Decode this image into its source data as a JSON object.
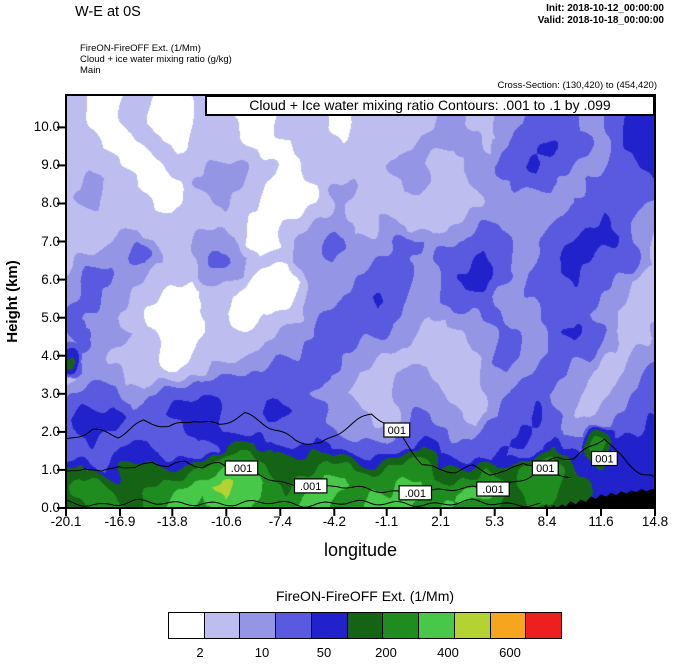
{
  "header": {
    "title": "W-E at 0S",
    "init_label": "Init: 2018-10-12_00:00:00",
    "valid_label": "Valid: 2018-10-18_00:00:00",
    "subtitle_lines": [
      "FireON-FireOFF Ext. (1/Mm)",
      "Cloud + ice water mixing ratio (g/kg)",
      "Main"
    ],
    "cross_section": "Cross-Section: (130,420) to (454,420)"
  },
  "chart_data": {
    "type": "heatmap",
    "title": "Cloud + Ice water mixing ratio Contours: .001 to .1 by .099",
    "xlabel": "longitude",
    "ylabel": "Height (km)",
    "xlim": [
      -20.1,
      14.8
    ],
    "ylim": [
      0,
      10.85
    ],
    "x_ticks": [
      "-20.1",
      "-16.9",
      "-13.8",
      "-10.6",
      "-7.4",
      "-4.2",
      "-1.1",
      "2.1",
      "5.3",
      "8.4",
      "11.6",
      "14.8"
    ],
    "y_ticks": [
      "0.0",
      "1.0",
      "2.0",
      "3.0",
      "4.0",
      "5.0",
      "6.0",
      "7.0",
      "8.0",
      "9.0",
      "10.0"
    ],
    "colorbar": {
      "title": "FireON-FireOFF Ext.  (1/Mm)",
      "colors": [
        "#ffffff",
        "#bdbdf0",
        "#9595e6",
        "#5a5ae0",
        "#2222cd",
        "#156415",
        "#1f8c1f",
        "#48c848",
        "#b4d232",
        "#f5a61e",
        "#ed1f1f"
      ],
      "thresholds": [
        2,
        5,
        10,
        25,
        50,
        100,
        200,
        300,
        400,
        500
      ],
      "tick_labels": [
        "2",
        "10",
        "50",
        "200",
        "400",
        "600"
      ]
    },
    "grid": {
      "x_start": -20.1,
      "x_end": 14.8,
      "y_start": 10.0,
      "y_end": 0.0,
      "values": [
        [
          3,
          3,
          0,
          0,
          3,
          3,
          0,
          0,
          3,
          3,
          3,
          0,
          0,
          3,
          3,
          3,
          0,
          3,
          3,
          3,
          3,
          3,
          7,
          7,
          3,
          3,
          7,
          7,
          15,
          15,
          15,
          7,
          7,
          15,
          35,
          35
        ],
        [
          3,
          3,
          3,
          0,
          0,
          3,
          3,
          0,
          3,
          3,
          3,
          3,
          0,
          0,
          3,
          3,
          3,
          3,
          3,
          3,
          3,
          7,
          7,
          7,
          7,
          3,
          7,
          15,
          15,
          35,
          15,
          15,
          7,
          15,
          35,
          35
        ],
        [
          0,
          3,
          3,
          3,
          0,
          0,
          3,
          3,
          3,
          7,
          7,
          3,
          3,
          0,
          3,
          3,
          3,
          3,
          3,
          7,
          7,
          7,
          3,
          3,
          7,
          7,
          15,
          15,
          35,
          15,
          15,
          7,
          7,
          15,
          15,
          35
        ],
        [
          3,
          3,
          7,
          3,
          3,
          0,
          0,
          3,
          7,
          7,
          7,
          3,
          0,
          0,
          0,
          3,
          7,
          7,
          3,
          3,
          7,
          7,
          3,
          3,
          3,
          7,
          7,
          15,
          15,
          15,
          7,
          7,
          15,
          15,
          15,
          15
        ],
        [
          3,
          7,
          7,
          3,
          3,
          3,
          0,
          3,
          3,
          7,
          3,
          3,
          0,
          0,
          3,
          3,
          7,
          3,
          3,
          3,
          3,
          3,
          3,
          3,
          3,
          3,
          7,
          7,
          7,
          7,
          7,
          15,
          15,
          15,
          15,
          7
        ],
        [
          3,
          3,
          3,
          3,
          3,
          3,
          3,
          3,
          3,
          3,
          3,
          0,
          0,
          3,
          3,
          7,
          7,
          3,
          3,
          7,
          7,
          3,
          3,
          3,
          7,
          7,
          7,
          7,
          7,
          7,
          15,
          15,
          35,
          15,
          7,
          7
        ],
        [
          3,
          3,
          3,
          7,
          7,
          3,
          3,
          3,
          7,
          7,
          3,
          0,
          0,
          3,
          7,
          7,
          15,
          7,
          7,
          7,
          15,
          15,
          7,
          7,
          7,
          15,
          15,
          7,
          7,
          15,
          15,
          35,
          35,
          15,
          7,
          3
        ],
        [
          3,
          7,
          7,
          7,
          15,
          7,
          3,
          3,
          7,
          15,
          7,
          3,
          3,
          3,
          7,
          7,
          7,
          7,
          7,
          15,
          15,
          7,
          7,
          15,
          15,
          35,
          15,
          7,
          7,
          15,
          35,
          35,
          15,
          15,
          7,
          3
        ],
        [
          7,
          15,
          15,
          7,
          7,
          3,
          3,
          3,
          7,
          7,
          7,
          3,
          0,
          0,
          3,
          7,
          7,
          7,
          15,
          15,
          15,
          7,
          7,
          15,
          35,
          35,
          15,
          7,
          15,
          15,
          35,
          15,
          15,
          7,
          3,
          3
        ],
        [
          7,
          15,
          7,
          7,
          3,
          3,
          0,
          0,
          3,
          3,
          3,
          0,
          0,
          0,
          3,
          7,
          7,
          15,
          15,
          35,
          15,
          7,
          7,
          15,
          15,
          15,
          7,
          7,
          15,
          15,
          15,
          15,
          7,
          7,
          3,
          3
        ],
        [
          15,
          7,
          7,
          3,
          3,
          0,
          0,
          0,
          3,
          3,
          0,
          0,
          3,
          3,
          3,
          7,
          15,
          15,
          15,
          15,
          7,
          7,
          3,
          7,
          7,
          15,
          7,
          7,
          7,
          15,
          15,
          7,
          7,
          3,
          3,
          3
        ],
        [
          7,
          15,
          7,
          7,
          3,
          3,
          0,
          0,
          0,
          3,
          3,
          3,
          3,
          7,
          7,
          7,
          15,
          15,
          7,
          7,
          7,
          3,
          3,
          3,
          7,
          7,
          15,
          7,
          7,
          15,
          35,
          15,
          7,
          3,
          3,
          7
        ],
        [
          70,
          7,
          7,
          3,
          3,
          3,
          0,
          0,
          3,
          3,
          3,
          3,
          7,
          7,
          7,
          15,
          15,
          7,
          7,
          3,
          3,
          3,
          3,
          3,
          3,
          7,
          15,
          7,
          7,
          15,
          15,
          15,
          7,
          3,
          7,
          7
        ],
        [
          3,
          7,
          7,
          7,
          3,
          3,
          3,
          3,
          3,
          7,
          7,
          7,
          7,
          15,
          15,
          15,
          7,
          7,
          3,
          3,
          7,
          7,
          3,
          3,
          3,
          7,
          7,
          7,
          15,
          15,
          7,
          7,
          3,
          3,
          7,
          15
        ],
        [
          7,
          15,
          15,
          15,
          7,
          7,
          15,
          15,
          15,
          15,
          15,
          15,
          15,
          15,
          15,
          7,
          7,
          3,
          3,
          3,
          7,
          7,
          7,
          3,
          3,
          7,
          7,
          15,
          15,
          7,
          7,
          3,
          3,
          7,
          7,
          15
        ],
        [
          15,
          35,
          35,
          35,
          15,
          15,
          15,
          35,
          35,
          35,
          15,
          15,
          35,
          35,
          15,
          15,
          7,
          7,
          3,
          3,
          7,
          15,
          7,
          7,
          3,
          7,
          15,
          15,
          35,
          15,
          7,
          3,
          7,
          7,
          15,
          15
        ],
        [
          15,
          15,
          35,
          15,
          15,
          15,
          15,
          15,
          35,
          35,
          15,
          15,
          15,
          15,
          15,
          15,
          7,
          7,
          7,
          7,
          15,
          15,
          15,
          7,
          7,
          15,
          15,
          35,
          15,
          15,
          7,
          7,
          7,
          15,
          15,
          35
        ],
        [
          15,
          15,
          15,
          15,
          35,
          35,
          15,
          15,
          15,
          15,
          70,
          70,
          15,
          15,
          15,
          35,
          15,
          15,
          15,
          15,
          15,
          70,
          15,
          15,
          15,
          15,
          35,
          15,
          15,
          70,
          15,
          15,
          150,
          35,
          35,
          35
        ],
        [
          70,
          70,
          15,
          35,
          70,
          70,
          70,
          70,
          150,
          150,
          250,
          150,
          70,
          70,
          70,
          150,
          150,
          70,
          35,
          70,
          150,
          150,
          70,
          70,
          70,
          150,
          70,
          70,
          150,
          150,
          70,
          35,
          35,
          35,
          35,
          35
        ],
        [
          70,
          150,
          150,
          70,
          70,
          150,
          150,
          250,
          250,
          350,
          250,
          250,
          150,
          70,
          150,
          250,
          250,
          150,
          150,
          150,
          250,
          250,
          150,
          150,
          250,
          250,
          150,
          70,
          150,
          150,
          70,
          70,
          35,
          35,
          35,
          35
        ],
        [
          70,
          70,
          150,
          150,
          70,
          150,
          250,
          250,
          150,
          250,
          250,
          150,
          150,
          150,
          250,
          250,
          150,
          150,
          250,
          250,
          250,
          150,
          150,
          250,
          150,
          150,
          70,
          70,
          70,
          70,
          70,
          35,
          35,
          35,
          35,
          35
        ]
      ]
    },
    "cloud_contour": {
      "level_label": ".001",
      "labels": [
        {
          "lon": -9.7,
          "km": 1.05,
          "text": ".001"
        },
        {
          "lon": -5.6,
          "km": 0.58,
          "text": ".001"
        },
        {
          "lon": -0.5,
          "km": 2.05,
          "text": "001"
        },
        {
          "lon": 0.6,
          "km": 0.4,
          "text": ".001"
        },
        {
          "lon": 5.2,
          "km": 0.5,
          "text": ".001"
        },
        {
          "lon": 8.3,
          "km": 1.05,
          "text": "001"
        },
        {
          "lon": 11.8,
          "km": 1.3,
          "text": "001"
        }
      ],
      "paths_km": [
        [
          [
            -20.1,
            1.75
          ],
          [
            -18.5,
            2.1
          ],
          [
            -17,
            1.9
          ],
          [
            -15.5,
            2.25
          ],
          [
            -14,
            2.1
          ],
          [
            -12.5,
            2.35
          ],
          [
            -11,
            2.2
          ],
          [
            -9.5,
            2.45
          ],
          [
            -8,
            2.1
          ],
          [
            -6.5,
            1.8
          ],
          [
            -5,
            1.7
          ],
          [
            -3.5,
            2.1
          ],
          [
            -2,
            2.45
          ],
          [
            -0.5,
            2.05
          ],
          [
            0.3,
            1.6
          ],
          [
            1,
            1.2
          ],
          [
            2,
            1.0
          ],
          [
            3,
            0.95
          ],
          [
            4,
            1.05
          ],
          [
            5,
            0.9
          ],
          [
            6,
            0.95
          ],
          [
            7,
            1.25
          ],
          [
            8,
            1.1
          ],
          [
            9,
            1.35
          ],
          [
            10,
            1.25
          ],
          [
            11,
            1.6
          ],
          [
            11.8,
            1.85
          ],
          [
            12.5,
            1.5
          ],
          [
            13.2,
            1.2
          ],
          [
            14,
            0.95
          ],
          [
            14.8,
            0.8
          ]
        ],
        [
          [
            -20.1,
            0.9
          ],
          [
            -19,
            1.1
          ],
          [
            -18,
            0.95
          ],
          [
            -17,
            1.15
          ],
          [
            -16,
            1.0
          ],
          [
            -15,
            1.2
          ],
          [
            -14,
            1.05
          ],
          [
            -13,
            1.25
          ],
          [
            -12,
            1.1
          ],
          [
            -11,
            1.2
          ],
          [
            -10,
            1.05
          ],
          [
            -9,
            0.9
          ],
          [
            -8,
            0.75
          ],
          [
            -7,
            0.6
          ],
          [
            -6,
            0.58
          ],
          [
            -5,
            0.55
          ],
          [
            -4,
            0.6
          ],
          [
            -3,
            0.5
          ],
          [
            -2,
            0.45
          ],
          [
            -1,
            0.42
          ],
          [
            0,
            0.4
          ],
          [
            1.5,
            0.45
          ],
          [
            2.5,
            0.5
          ],
          [
            3.5,
            0.48
          ],
          [
            4.5,
            0.5
          ],
          [
            5.2,
            0.5
          ],
          [
            6,
            0.6
          ],
          [
            7,
            0.8
          ],
          [
            8,
            1.0
          ],
          [
            8.3,
            1.05
          ],
          [
            9,
            0.9
          ],
          [
            9.8,
            0.8
          ]
        ],
        [
          [
            -20.1,
            0.14
          ],
          [
            -18,
            0.1
          ],
          [
            -16,
            0.16
          ],
          [
            -14,
            0.1
          ],
          [
            -12,
            0.15
          ],
          [
            -10,
            0.1
          ],
          [
            -8,
            0.14
          ],
          [
            -6,
            0.1
          ],
          [
            -4,
            0.15
          ],
          [
            -2,
            0.1
          ],
          [
            0,
            0.14
          ],
          [
            2,
            0.1
          ],
          [
            4,
            0.15
          ],
          [
            6,
            0.1
          ],
          [
            8,
            0.13
          ]
        ]
      ]
    },
    "terrain_km": [
      [
        8.2,
        0.0
      ],
      [
        8.35,
        0.1
      ],
      [
        8.5,
        0.0
      ],
      [
        8.8,
        0.07
      ],
      [
        9.0,
        0.0
      ],
      [
        9.3,
        0.1
      ],
      [
        9.5,
        0.04
      ],
      [
        9.8,
        0.18
      ],
      [
        10.1,
        0.1
      ],
      [
        10.4,
        0.22
      ],
      [
        10.7,
        0.16
      ],
      [
        11.0,
        0.3
      ],
      [
        11.3,
        0.24
      ],
      [
        11.6,
        0.36
      ],
      [
        11.9,
        0.3
      ],
      [
        12.2,
        0.4
      ],
      [
        12.5,
        0.34
      ],
      [
        12.8,
        0.44
      ],
      [
        13.1,
        0.38
      ],
      [
        13.4,
        0.46
      ],
      [
        13.7,
        0.42
      ],
      [
        14.0,
        0.5
      ],
      [
        14.3,
        0.44
      ],
      [
        14.6,
        0.5
      ],
      [
        14.8,
        0.48
      ]
    ]
  }
}
